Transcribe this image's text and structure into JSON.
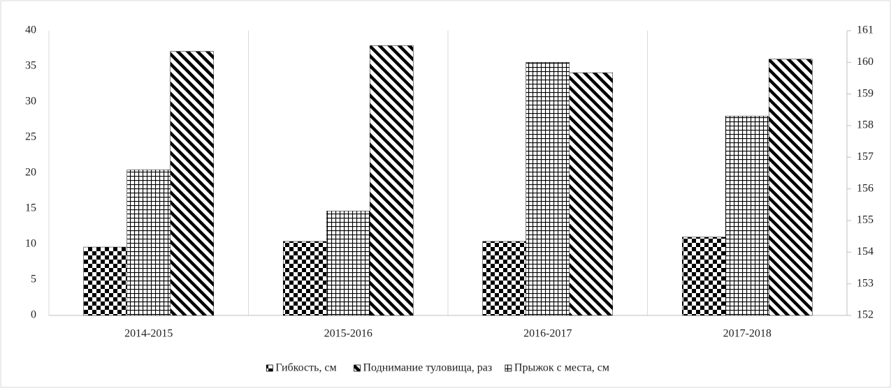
{
  "chart_data": {
    "type": "bar",
    "categories": [
      "2014-2015",
      "2015-2016",
      "2016-2017",
      "2017-2018"
    ],
    "series": [
      {
        "name": "Гибкость, см",
        "color": "#000000",
        "pattern": "checker",
        "values": [
          9.6,
          10.4,
          10.4,
          11.0
        ]
      },
      {
        "name": "Поднимание туловища, раз",
        "color": "#000000",
        "pattern": "diagonal",
        "values": [
          37.1,
          37.9,
          34.1,
          36.0
        ]
      },
      {
        "name": "Прыжок с места, см",
        "color": "#000000",
        "pattern": "grid",
        "axis": "y2",
        "values": [
          156.6,
          155.3,
          160.0,
          158.3
        ]
      }
    ],
    "ylim": [
      0,
      40
    ],
    "yticks": [
      0,
      5,
      10,
      15,
      20,
      25,
      30,
      35,
      40
    ],
    "y2lim": [
      152,
      161
    ],
    "y2ticks": [
      152,
      153,
      154,
      155,
      156,
      157,
      158,
      159,
      160,
      161
    ],
    "legend": "bottom"
  }
}
